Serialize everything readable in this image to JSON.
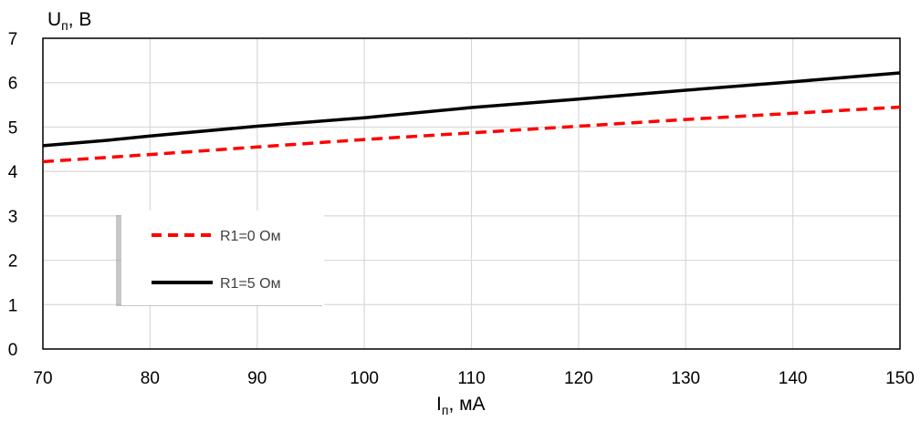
{
  "chart_data": {
    "type": "line",
    "xlabel": {
      "main": "I",
      "sub": "п",
      "rest": ", мА"
    },
    "ylabel": {
      "main": "U",
      "sub": "п",
      "rest": ", В"
    },
    "xlim": [
      70,
      150
    ],
    "ylim": [
      0,
      7
    ],
    "x_ticks": [
      70,
      80,
      90,
      100,
      110,
      120,
      130,
      140,
      150
    ],
    "y_ticks": [
      0,
      1,
      2,
      3,
      4,
      5,
      6,
      7
    ],
    "grid": true,
    "legend_position": "lower-left",
    "series": [
      {
        "name": "R1=0 Ом",
        "color": "#ff0000",
        "style": "dashed",
        "x": [
          70,
          80,
          90,
          100,
          110,
          120,
          130,
          140,
          150
        ],
        "y": [
          4.22,
          4.38,
          4.55,
          4.72,
          4.87,
          5.02,
          5.17,
          5.31,
          5.45
        ]
      },
      {
        "name": "R1=5 Ом",
        "color": "#000000",
        "style": "solid",
        "x": [
          70,
          76,
          80,
          90,
          100,
          110,
          120,
          130,
          140,
          150
        ],
        "y": [
          4.58,
          4.7,
          4.8,
          5.02,
          5.21,
          5.44,
          5.63,
          5.83,
          6.02,
          6.22
        ]
      }
    ]
  }
}
